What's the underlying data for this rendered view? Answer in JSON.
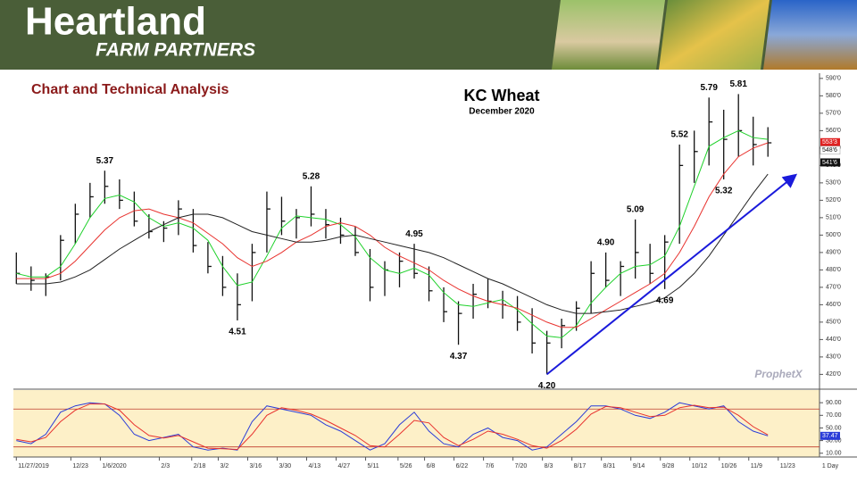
{
  "header": {
    "brand": "Heartland",
    "tagline": "FARM PARTNERS"
  },
  "section_title": "Chart and Technical Analysis",
  "footer_label": "1 Day",
  "watermark": "ProphetX",
  "chart_data": [
    {
      "type": "ohlc",
      "title": "KC Wheat",
      "subtitle": "December 2020",
      "color": "#111111",
      "grid": false,
      "x": [
        0,
        1,
        2,
        3,
        4,
        5,
        6,
        7,
        8,
        9,
        10,
        11,
        12,
        13,
        14,
        15,
        16,
        17,
        18,
        19,
        20,
        21,
        22,
        23,
        24,
        25,
        26,
        27,
        28,
        29,
        30,
        31,
        32,
        33,
        34,
        35,
        36,
        37,
        38,
        39,
        40,
        41,
        42,
        43,
        44,
        45,
        46,
        47,
        48,
        49,
        50,
        51
      ],
      "high": [
        490,
        482,
        478,
        500,
        518,
        530,
        537,
        532,
        525,
        512,
        508,
        520,
        515,
        496,
        488,
        478,
        495,
        525,
        522,
        515,
        528,
        515,
        510,
        505,
        492,
        485,
        490,
        495,
        482,
        470,
        462,
        472,
        475,
        468,
        465,
        458,
        445,
        452,
        462,
        485,
        490,
        485,
        509,
        495,
        500,
        552,
        560,
        579,
        572,
        581,
        568,
        562
      ],
      "low": [
        472,
        468,
        465,
        474,
        495,
        510,
        518,
        515,
        505,
        498,
        496,
        500,
        490,
        478,
        465,
        451,
        462,
        490,
        500,
        498,
        505,
        498,
        495,
        488,
        462,
        465,
        470,
        475,
        462,
        450,
        437,
        452,
        458,
        452,
        445,
        432,
        420,
        435,
        445,
        455,
        470,
        465,
        475,
        472,
        469,
        495,
        530,
        540,
        532,
        545,
        540,
        545
      ],
      "close": [
        478,
        474,
        476,
        497,
        512,
        522,
        528,
        520,
        508,
        502,
        504,
        515,
        494,
        482,
        470,
        460,
        490,
        515,
        508,
        510,
        512,
        506,
        500,
        490,
        470,
        480,
        485,
        478,
        468,
        456,
        455,
        466,
        462,
        460,
        450,
        438,
        438,
        448,
        458,
        478,
        474,
        482,
        490,
        478,
        496,
        540,
        548,
        565,
        555,
        560,
        552,
        553
      ],
      "series": [
        {
          "color": "#1fd12b",
          "values": [
            478,
            476,
            476,
            482,
            495,
            510,
            521,
            523,
            519,
            510,
            505,
            507,
            504,
            497,
            482,
            471,
            473,
            488,
            504,
            511,
            510,
            509,
            506,
            499,
            487,
            480,
            478,
            481,
            477,
            467,
            460,
            459,
            461,
            463,
            457,
            449,
            442,
            441,
            448,
            461,
            470,
            478,
            482,
            483,
            488,
            505,
            528,
            551,
            556,
            560,
            556,
            555
          ]
        },
        {
          "color": "#e8322e",
          "values": [
            475,
            475,
            475,
            478,
            485,
            494,
            503,
            510,
            514,
            515,
            512,
            510,
            507,
            501,
            495,
            487,
            482,
            485,
            490,
            496,
            500,
            505,
            507,
            505,
            500,
            493,
            488,
            484,
            480,
            474,
            469,
            465,
            462,
            460,
            458,
            454,
            450,
            447,
            447,
            452,
            457,
            462,
            467,
            472,
            478,
            490,
            505,
            522,
            535,
            545,
            550,
            553
          ]
        },
        {
          "color": "#222222",
          "values": [
            472,
            472,
            472,
            473,
            476,
            480,
            486,
            492,
            497,
            502,
            506,
            510,
            512,
            512,
            510,
            506,
            502,
            500,
            498,
            496,
            496,
            497,
            499,
            500,
            498,
            496,
            494,
            492,
            490,
            487,
            483,
            479,
            475,
            472,
            468,
            464,
            460,
            457,
            455,
            455,
            456,
            457,
            459,
            461,
            464,
            470,
            478,
            488,
            500,
            512,
            524,
            535
          ]
        }
      ],
      "xlim": [
        -0.2,
        54.5
      ],
      "xticks": [
        {
          "value": 0,
          "label": "11/27/2019"
        },
        {
          "value": 3.7,
          "label": "12/23"
        },
        {
          "value": 5.7,
          "label": "1/6/2020"
        },
        {
          "value": 9.7,
          "label": "2/3"
        },
        {
          "value": 11.9,
          "label": "2/18"
        },
        {
          "value": 13.7,
          "label": "3/2"
        },
        {
          "value": 15.7,
          "label": "3/16"
        },
        {
          "value": 17.7,
          "label": "3/30"
        },
        {
          "value": 19.7,
          "label": "4/13"
        },
        {
          "value": 21.7,
          "label": "4/27"
        },
        {
          "value": 23.7,
          "label": "5/11"
        },
        {
          "value": 25.9,
          "label": "5/26"
        },
        {
          "value": 27.7,
          "label": "6/8"
        },
        {
          "value": 29.7,
          "label": "6/22"
        },
        {
          "value": 31.7,
          "label": "7/6"
        },
        {
          "value": 33.7,
          "label": "7/20"
        },
        {
          "value": 35.7,
          "label": "8/3"
        },
        {
          "value": 37.7,
          "label": "8/17"
        },
        {
          "value": 39.7,
          "label": "8/31"
        },
        {
          "value": 41.7,
          "label": "9/14"
        },
        {
          "value": 43.7,
          "label": "9/28"
        },
        {
          "value": 45.7,
          "label": "10/12"
        },
        {
          "value": 47.7,
          "label": "10/26"
        },
        {
          "value": 49.7,
          "label": "11/9"
        },
        {
          "value": 51.7,
          "label": "11/23"
        }
      ],
      "ylim": [
        412,
        593
      ],
      "yticks": [
        {
          "value": 420,
          "label": "420'0"
        },
        {
          "value": 430,
          "label": "430'0"
        },
        {
          "value": 440,
          "label": "440'0"
        },
        {
          "value": 450,
          "label": "450'0"
        },
        {
          "value": 460,
          "label": "460'0"
        },
        {
          "value": 470,
          "label": "470'0"
        },
        {
          "value": 480,
          "label": "480'0"
        },
        {
          "value": 490,
          "label": "490'0"
        },
        {
          "value": 500,
          "label": "500'0"
        },
        {
          "value": 510,
          "label": "510'0"
        },
        {
          "value": 520,
          "label": "520'0"
        },
        {
          "value": 530,
          "label": "530'0"
        },
        {
          "value": 540,
          "label": "540'0"
        },
        {
          "value": 550,
          "label": "550'0"
        },
        {
          "value": 560,
          "label": "560'0"
        },
        {
          "value": 570,
          "label": "570'0"
        },
        {
          "value": 580,
          "label": "580'0"
        },
        {
          "value": 590,
          "label": "590'0"
        }
      ],
      "price_tags": [
        {
          "value": 553.375,
          "label": "553'3",
          "color": "#e02020"
        },
        {
          "value": 548.75,
          "label": "548'6",
          "color": "#ffffff"
        },
        {
          "value": 541.75,
          "label": "541'6",
          "color": "#111111"
        }
      ],
      "annotations": [
        {
          "text": "5.37",
          "x": 6,
          "y": 537
        },
        {
          "text": "4.51",
          "x": 15,
          "y": 451
        },
        {
          "text": "5.28",
          "x": 20,
          "y": 528
        },
        {
          "text": "4.95",
          "x": 27,
          "y": 495
        },
        {
          "text": "4.37",
          "x": 30,
          "y": 437
        },
        {
          "text": "4.20",
          "x": 36,
          "y": 420
        },
        {
          "text": "4.90",
          "x": 40,
          "y": 490
        },
        {
          "text": "5.09",
          "x": 42,
          "y": 509
        },
        {
          "text": "4.69",
          "x": 44,
          "y": 469
        },
        {
          "text": "5.52",
          "x": 45,
          "y": 552
        },
        {
          "text": "5.79",
          "x": 47,
          "y": 579
        },
        {
          "text": "5.32",
          "x": 48,
          "y": 532
        },
        {
          "text": "5.81",
          "x": 49,
          "y": 581
        }
      ],
      "trendline": {
        "x": [
          36,
          52.8
        ],
        "y": [
          420,
          534
        ],
        "color": "#1a1adb"
      }
    },
    {
      "type": "line",
      "background": "#fdf0c8",
      "x": [
        0,
        1,
        2,
        3,
        4,
        5,
        6,
        7,
        8,
        9,
        10,
        11,
        12,
        13,
        14,
        15,
        16,
        17,
        18,
        19,
        20,
        21,
        22,
        23,
        24,
        25,
        26,
        27,
        28,
        29,
        30,
        31,
        32,
        33,
        34,
        35,
        36,
        37,
        38,
        39,
        40,
        41,
        42,
        43,
        44,
        45,
        46,
        47,
        48,
        49,
        50,
        51
      ],
      "series": [
        {
          "color": "#2a3cd8",
          "values": [
            30,
            25,
            40,
            75,
            85,
            90,
            88,
            70,
            40,
            30,
            35,
            40,
            20,
            15,
            18,
            15,
            60,
            85,
            80,
            75,
            70,
            55,
            45,
            30,
            15,
            25,
            55,
            75,
            45,
            25,
            20,
            40,
            50,
            35,
            30,
            15,
            20,
            40,
            60,
            85,
            85,
            80,
            70,
            65,
            75,
            90,
            85,
            80,
            85,
            60,
            45,
            37.47
          ]
        },
        {
          "color": "#e8322e",
          "values": [
            32,
            28,
            35,
            60,
            78,
            88,
            88,
            78,
            55,
            38,
            34,
            38,
            28,
            18,
            17,
            16,
            40,
            70,
            82,
            78,
            72,
            62,
            50,
            38,
            22,
            20,
            40,
            62,
            58,
            35,
            22,
            32,
            45,
            40,
            32,
            22,
            18,
            30,
            48,
            72,
            84,
            82,
            75,
            68,
            70,
            82,
            86,
            82,
            83,
            70,
            52,
            39
          ]
        }
      ],
      "ylim": [
        4,
        110
      ],
      "yticks": [
        {
          "value": 10,
          "label": "10.00"
        },
        {
          "value": 30,
          "label": "30.00"
        },
        {
          "value": 50,
          "label": "50.00"
        },
        {
          "value": 70,
          "label": "70.00"
        },
        {
          "value": 90,
          "label": "90.00"
        }
      ],
      "levels": [
        20,
        80
      ],
      "level_color": "#c0392b",
      "price_tags": [
        {
          "value": 37.47,
          "label": "37.47",
          "color": "#2a3cd8"
        }
      ]
    }
  ]
}
